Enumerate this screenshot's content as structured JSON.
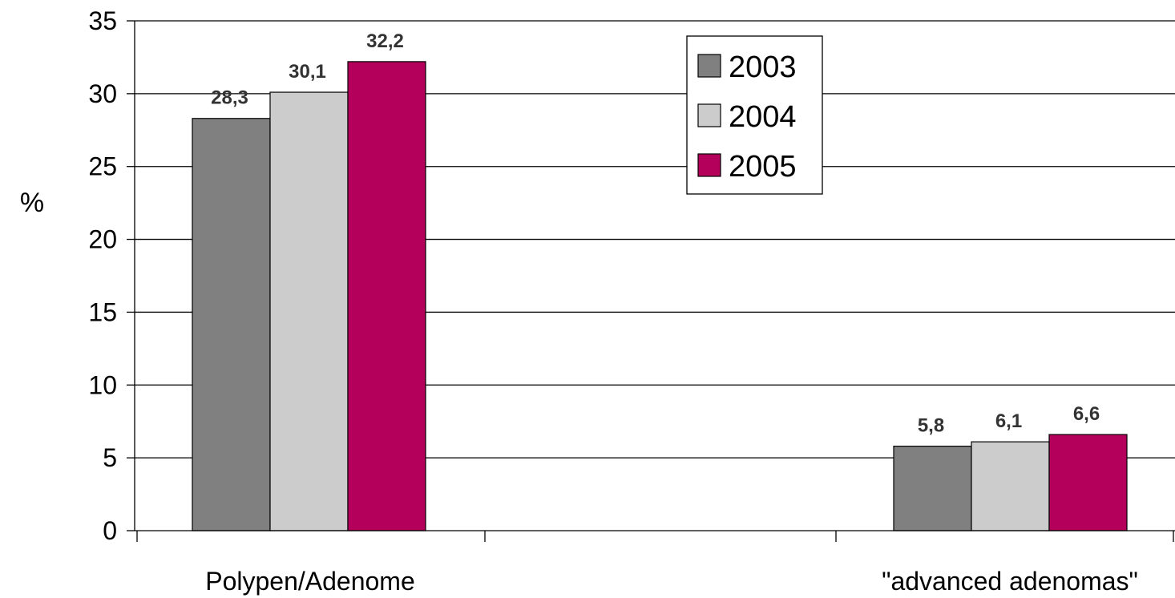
{
  "chart_data": {
    "type": "bar",
    "title": "",
    "xlabel": "",
    "ylabel": "%",
    "ylim": [
      0,
      35
    ],
    "yticks": [
      0,
      5,
      10,
      15,
      20,
      25,
      30,
      35
    ],
    "grid": true,
    "legend": "top-center",
    "categories": [
      "Polypen/Adenome",
      "\"advanced adenomas\""
    ],
    "series": [
      {
        "name": "2003",
        "color": "#808080",
        "values": [
          28.3,
          5.8
        ],
        "labels": [
          "28,3",
          "5,8"
        ]
      },
      {
        "name": "2004",
        "color": "#cccccc",
        "values": [
          30.1,
          6.1
        ],
        "labels": [
          "30,1",
          "6,1"
        ]
      },
      {
        "name": "2005",
        "color": "#b5005b",
        "values": [
          32.2,
          6.6
        ],
        "labels": [
          "32,2",
          "6,6"
        ]
      }
    ]
  }
}
